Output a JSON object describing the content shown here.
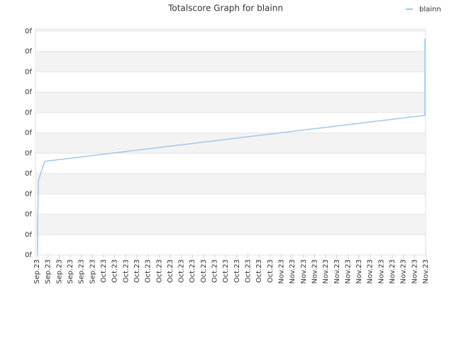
{
  "chart_data": {
    "type": "line",
    "title": "Totalscore Graph for blainn",
    "legend": "top-right",
    "grid": true,
    "xlim": [
      -0.13,
      35
    ],
    "ylim": [
      0,
      11.1
    ],
    "xticks": [
      {
        "value": 0,
        "label": "Sep.23"
      },
      {
        "value": 1,
        "label": "Sep.23"
      },
      {
        "value": 2,
        "label": "Sep.23"
      },
      {
        "value": 3,
        "label": "Sep.23"
      },
      {
        "value": 4,
        "label": "Sep.23"
      },
      {
        "value": 5,
        "label": "Sep.23"
      },
      {
        "value": 6,
        "label": "Oct.23"
      },
      {
        "value": 7,
        "label": "Oct.23"
      },
      {
        "value": 8,
        "label": "Oct.23"
      },
      {
        "value": 9,
        "label": "Oct.23"
      },
      {
        "value": 10,
        "label": "Oct.23"
      },
      {
        "value": 11,
        "label": "Oct.23"
      },
      {
        "value": 12,
        "label": "Oct.23"
      },
      {
        "value": 13,
        "label": "Oct.23"
      },
      {
        "value": 14,
        "label": "Oct.23"
      },
      {
        "value": 15,
        "label": "Oct.23"
      },
      {
        "value": 16,
        "label": "Oct.23"
      },
      {
        "value": 17,
        "label": "Oct.23"
      },
      {
        "value": 18,
        "label": "Oct.23"
      },
      {
        "value": 19,
        "label": "Oct.23"
      },
      {
        "value": 20,
        "label": "Oct.23"
      },
      {
        "value": 21,
        "label": "Oct.23"
      },
      {
        "value": 22,
        "label": "Nov.23"
      },
      {
        "value": 23,
        "label": "Nov.23"
      },
      {
        "value": 24,
        "label": "Nov.23"
      },
      {
        "value": 25,
        "label": "Nov.23"
      },
      {
        "value": 26,
        "label": "Nov.23"
      },
      {
        "value": 27,
        "label": "Nov.23"
      },
      {
        "value": 28,
        "label": "Nov.23"
      },
      {
        "value": 29,
        "label": "Nov.23"
      },
      {
        "value": 30,
        "label": "Nov.23"
      },
      {
        "value": 31,
        "label": "Nov.23"
      },
      {
        "value": 32,
        "label": "Nov.23"
      },
      {
        "value": 33,
        "label": "Nov.23"
      },
      {
        "value": 34,
        "label": "Nov.23"
      },
      {
        "value": 35,
        "label": "Nov.23"
      }
    ],
    "yticks": [
      {
        "value": 0,
        "label": "0f"
      },
      {
        "value": 1,
        "label": "0f"
      },
      {
        "value": 2,
        "label": "0f"
      },
      {
        "value": 3,
        "label": "0f"
      },
      {
        "value": 4,
        "label": "0f"
      },
      {
        "value": 5,
        "label": "0f"
      },
      {
        "value": 6,
        "label": "0f"
      },
      {
        "value": 7,
        "label": "0f"
      },
      {
        "value": 8,
        "label": "0f"
      },
      {
        "value": 9,
        "label": "0f"
      },
      {
        "value": 10,
        "label": "0f"
      },
      {
        "value": 11,
        "label": "0f"
      }
    ],
    "series": [
      {
        "name": "blainn",
        "color": "#9ec8ec",
        "x": [
          0.06,
          0.06,
          0.13,
          0.7,
          34.93,
          34.93
        ],
        "values": [
          0,
          1.46,
          3.66,
          4.6,
          6.86,
          10.63
        ]
      }
    ]
  }
}
